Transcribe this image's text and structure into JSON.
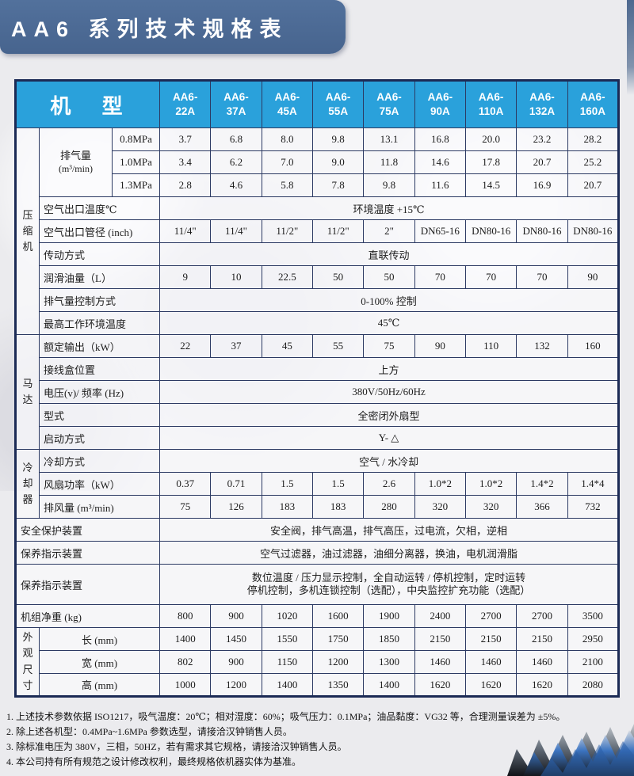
{
  "banner": {
    "title": "AA6 系列技术规格表"
  },
  "colors": {
    "banner_blue": "#47648e",
    "header_blue": "#2aa1db",
    "border_navy": "#1b2a55"
  },
  "table": {
    "corner_label": "机 型",
    "models": [
      "AA6-22A",
      "AA6-37A",
      "AA6-45A",
      "AA6-55A",
      "AA6-75A",
      "AA6-90A",
      "AA6-110A",
      "AA6-132A",
      "AA6-160A"
    ],
    "groups": {
      "compressor": "压缩机",
      "motor": "马达",
      "cooler": "冷却器",
      "dimensions": "外观尺寸"
    },
    "rows": {
      "discharge": {
        "label": "排气量",
        "unit": "(m³/min)",
        "sub": [
          {
            "label": "0.8MPa",
            "values": [
              "3.7",
              "6.8",
              "8.0",
              "9.8",
              "13.1",
              "16.8",
              "20.0",
              "23.2",
              "28.2"
            ]
          },
          {
            "label": "1.0MPa",
            "values": [
              "3.4",
              "6.2",
              "7.0",
              "9.0",
              "11.8",
              "14.6",
              "17.8",
              "20.7",
              "25.2"
            ]
          },
          {
            "label": "1.3MPa",
            "values": [
              "2.8",
              "4.6",
              "5.8",
              "7.8",
              "9.8",
              "11.6",
              "14.5",
              "16.9",
              "20.7"
            ]
          }
        ]
      },
      "outlet_temp": {
        "label": "空气出口温度℃",
        "value": "环境温度 +15℃"
      },
      "outlet_pipe": {
        "label": "空气出口管径 (inch)",
        "values": [
          "11/4\"",
          "11/4\"",
          "11/2\"",
          "11/2\"",
          "2\"",
          "DN65-16",
          "DN80-16",
          "DN80-16",
          "DN80-16"
        ]
      },
      "drive": {
        "label": "传动方式",
        "value": "直联传动"
      },
      "oil": {
        "label": "润滑油量（L）",
        "values": [
          "9",
          "10",
          "22.5",
          "50",
          "50",
          "70",
          "70",
          "70",
          "90"
        ]
      },
      "discharge_control": {
        "label": "排气量控制方式",
        "value": "0-100% 控制"
      },
      "max_ambient": {
        "label": "最高工作环境温度",
        "value": "45℃"
      },
      "rated_output": {
        "label": "额定输出（kW）",
        "values": [
          "22",
          "37",
          "45",
          "55",
          "75",
          "90",
          "110",
          "132",
          "160"
        ]
      },
      "junction_box": {
        "label": "接线盒位置",
        "value": "上方"
      },
      "voltage": {
        "label": "电压(v)/ 频率 (Hz)",
        "value": "380V/50Hz/60Hz"
      },
      "motor_type": {
        "label": "型式",
        "value": "全密闭外扇型"
      },
      "starting": {
        "label": "启动方式",
        "value": "Y- △"
      },
      "cooling": {
        "label": "冷却方式",
        "value": "空气 / 水冷却"
      },
      "fan_power": {
        "label": "风扇功率（kW）",
        "values": [
          "0.37",
          "0.71",
          "1.5",
          "1.5",
          "2.6",
          "1.0*2",
          "1.0*2",
          "1.4*2",
          "1.4*4"
        ]
      },
      "air_volume": {
        "label": "排风量 (m³/min)",
        "values": [
          "75",
          "126",
          "183",
          "183",
          "280",
          "320",
          "320",
          "366",
          "732"
        ]
      },
      "safety": {
        "label": "安全保护装置",
        "value": "安全阀，排气高温，排气高压，过电流，欠相，逆相"
      },
      "maintenance1": {
        "label": "保养指示装置",
        "value": "空气过滤器，油过滤器，油细分离器，换油，电机润滑脂"
      },
      "maintenance2": {
        "label": "保养指示装置",
        "value_line1": "数位温度 / 压力显示控制，全自动运转 / 停机控制，定时运转",
        "value_line2": "停机控制，多机连锁控制（选配），中央监控扩充功能（选配）"
      },
      "net_weight": {
        "label": "机组净重 (kg)",
        "values": [
          "800",
          "900",
          "1020",
          "1600",
          "1900",
          "2400",
          "2700",
          "2700",
          "3500"
        ]
      },
      "length": {
        "label": "长 (mm)",
        "values": [
          "1400",
          "1450",
          "1550",
          "1750",
          "1850",
          "2150",
          "2150",
          "2150",
          "2950"
        ]
      },
      "width": {
        "label": "宽 (mm)",
        "values": [
          "802",
          "900",
          "1150",
          "1200",
          "1300",
          "1460",
          "1460",
          "1460",
          "2100"
        ]
      },
      "height": {
        "label": "高 (mm)",
        "values": [
          "1000",
          "1200",
          "1400",
          "1350",
          "1400",
          "1620",
          "1620",
          "1620",
          "2080"
        ]
      }
    }
  },
  "notes": [
    "1. 上述技术参数依据 ISO1217，吸气温度：20℃；相对湿度：60%；吸气压力：0.1MPa；油品黏度：VG32 等，合理测量误差为 ±5%。",
    "2. 除上述各机型：0.4MPa~1.6MPa 参数选型，请接洽汉钟销售人员。",
    "3. 除标准电压为 380V，三相，50HZ，若有需求其它规格，请接洽汉钟销售人员。",
    "4. 本公司持有所有规范之设计修改权利，最终规格依机器实体为基准。"
  ]
}
